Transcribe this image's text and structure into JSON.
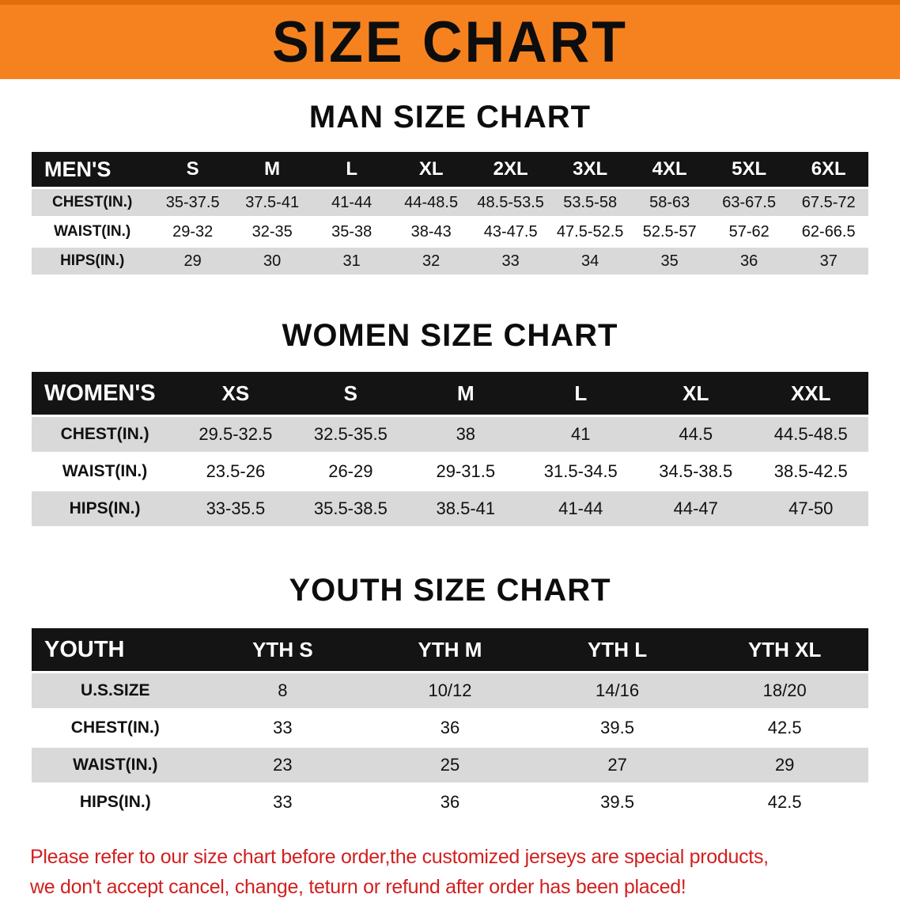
{
  "banner": {
    "title": "SIZE CHART",
    "bg_color": "#f6821f",
    "text_color": "#0d0d0d"
  },
  "colors": {
    "header_row_bg": "#141414",
    "header_row_text": "#ffffff",
    "alt_row_bg": "#d9d9d9",
    "disclaimer_text": "#d21f1f"
  },
  "sections": [
    {
      "heading": "MAN SIZE CHART",
      "table": {
        "header": [
          "MEN'S",
          "S",
          "M",
          "L",
          "XL",
          "2XL",
          "3XL",
          "4XL",
          "5XL",
          "6XL"
        ],
        "rows": [
          [
            "CHEST(IN.)",
            "35-37.5",
            "37.5-41",
            "41-44",
            "44-48.5",
            "48.5-53.5",
            "53.5-58",
            "58-63",
            "63-67.5",
            "67.5-72"
          ],
          [
            "WAIST(IN.)",
            "29-32",
            "32-35",
            "35-38",
            "38-43",
            "43-47.5",
            "47.5-52.5",
            "52.5-57",
            "57-62",
            "62-66.5"
          ],
          [
            "HIPS(IN.)",
            "29",
            "30",
            "31",
            "32",
            "33",
            "34",
            "35",
            "36",
            "37"
          ]
        ]
      }
    },
    {
      "heading": "WOMEN SIZE CHART",
      "table": {
        "header": [
          "WOMEN'S",
          "XS",
          "S",
          "M",
          "L",
          "XL",
          "XXL"
        ],
        "rows": [
          [
            "CHEST(IN.)",
            "29.5-32.5",
            "32.5-35.5",
            "38",
            "41",
            "44.5",
            "44.5-48.5"
          ],
          [
            "WAIST(IN.)",
            "23.5-26",
            "26-29",
            "29-31.5",
            "31.5-34.5",
            "34.5-38.5",
            "38.5-42.5"
          ],
          [
            "HIPS(IN.)",
            "33-35.5",
            "35.5-38.5",
            "38.5-41",
            "41-44",
            "44-47",
            "47-50"
          ]
        ]
      }
    },
    {
      "heading": "YOUTH SIZE CHART",
      "table": {
        "header": [
          "YOUTH",
          "YTH S",
          "YTH M",
          "YTH L",
          "YTH XL"
        ],
        "rows": [
          [
            "U.S.SIZE",
            "8",
            "10/12",
            "14/16",
            "18/20"
          ],
          [
            "CHEST(IN.)",
            "33",
            "36",
            "39.5",
            "42.5"
          ],
          [
            "WAIST(IN.)",
            "23",
            "25",
            "27",
            "29"
          ],
          [
            "HIPS(IN.)",
            "33",
            "36",
            "39.5",
            "42.5"
          ]
        ]
      }
    }
  ],
  "disclaimer": {
    "line1": "Please refer to our size chart before order,the customized jerseys are special products,",
    "line2": "we don't accept cancel, change, teturn or refund after order has been placed!"
  }
}
